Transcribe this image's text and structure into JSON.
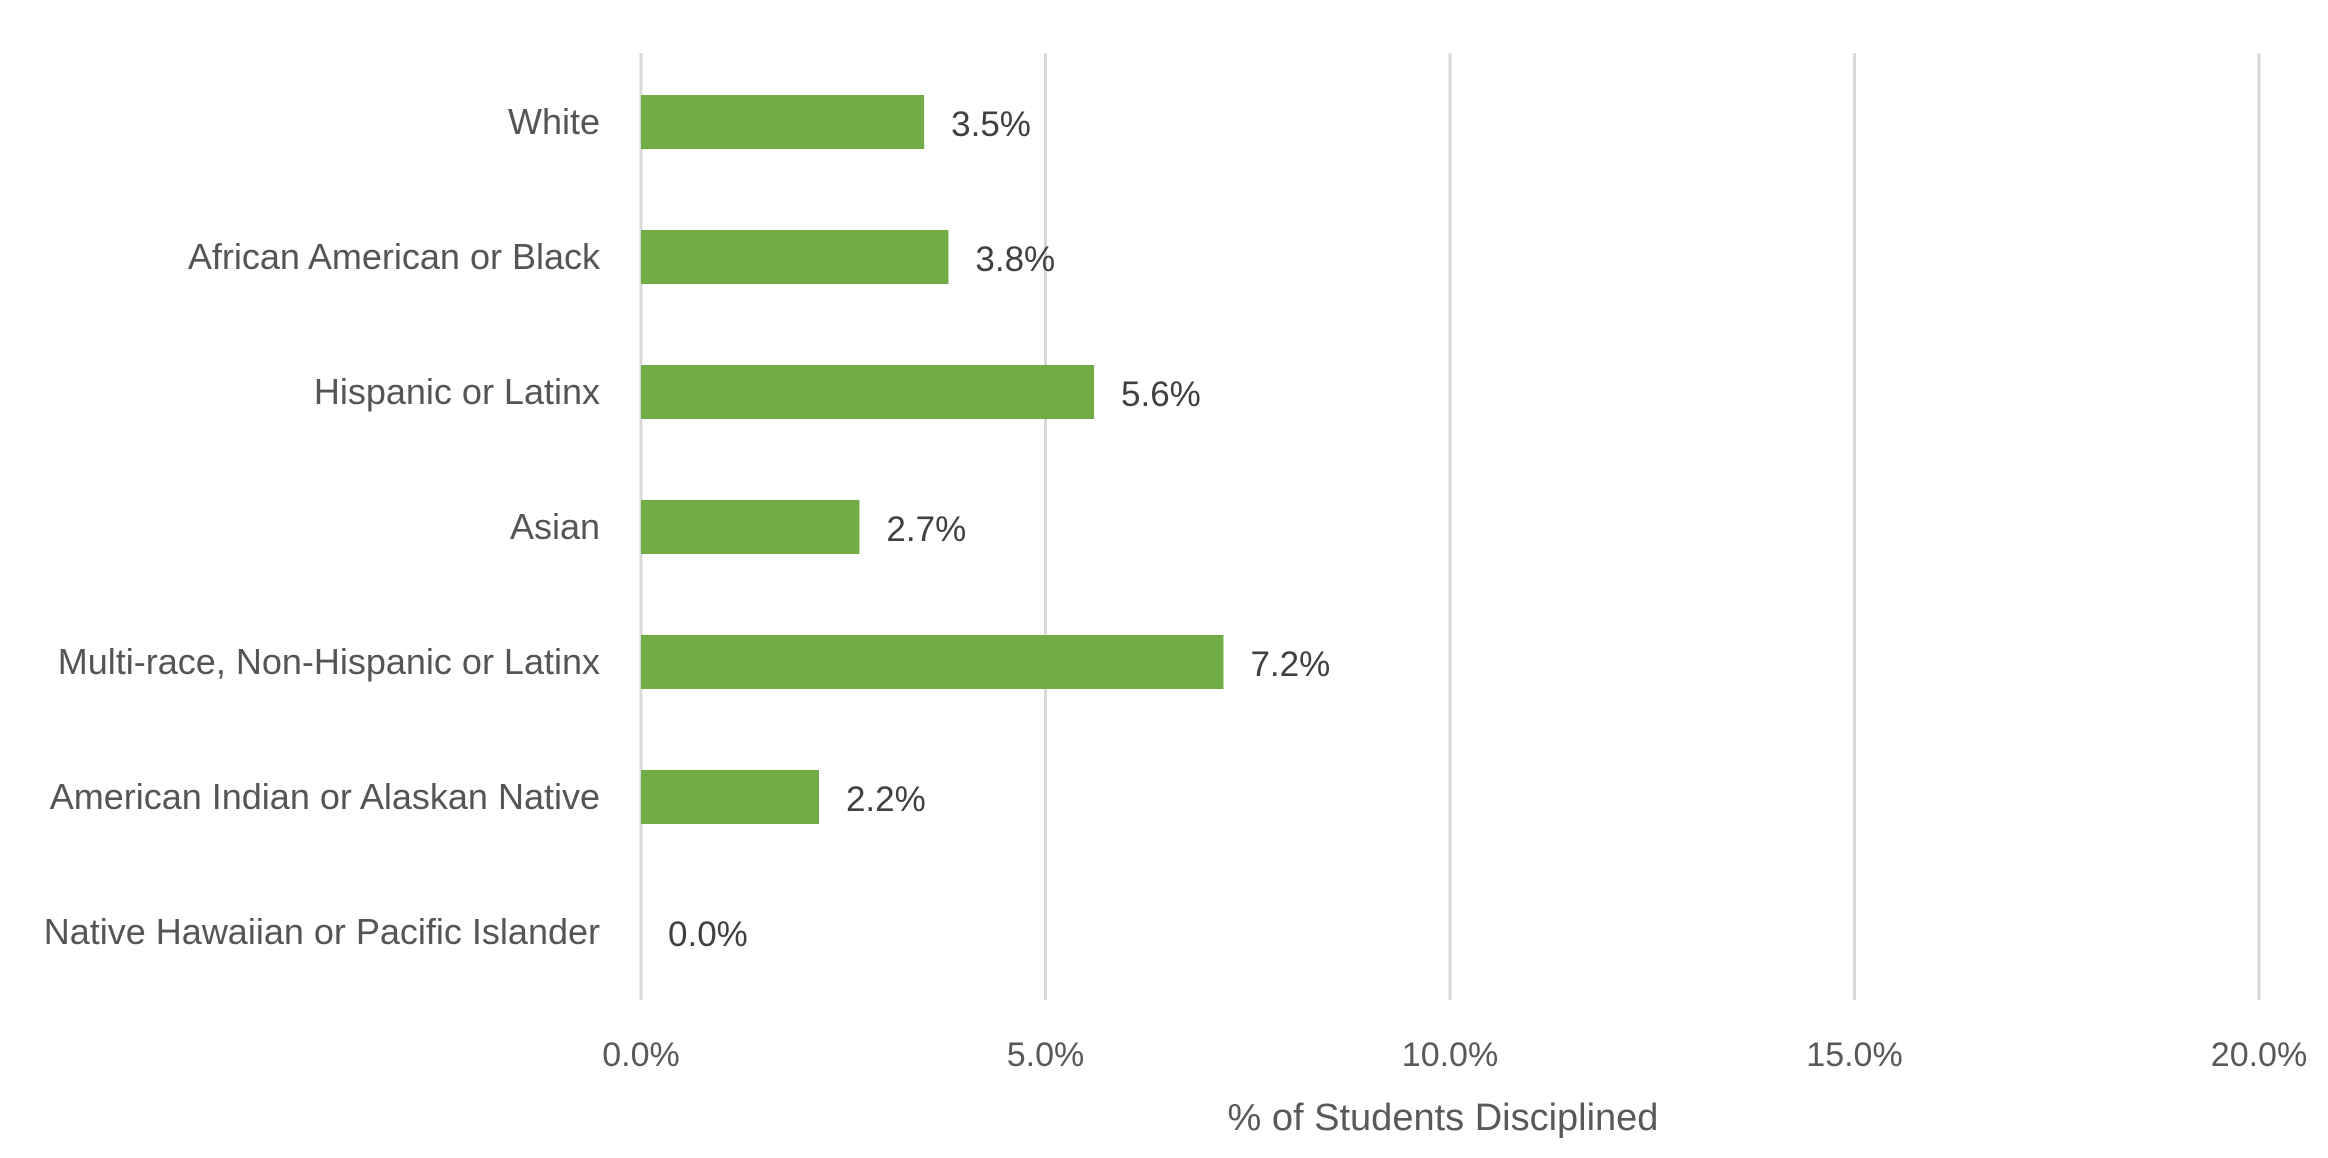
{
  "chart_data": {
    "type": "bar",
    "orientation": "horizontal",
    "categories": [
      "White",
      "African American or Black",
      "Hispanic or Latinx",
      "Asian",
      "Multi-race, Non-Hispanic or Latinx",
      "American Indian or Alaskan Native",
      "Native Hawaiian or Pacific Islander"
    ],
    "values": [
      3.5,
      3.8,
      5.6,
      2.7,
      7.2,
      2.2,
      0.0
    ],
    "data_labels": [
      "3.5%",
      "3.8%",
      "5.6%",
      "2.7%",
      "7.2%",
      "2.2%",
      "0.0%"
    ],
    "xlabel": "% of Students  Disciplined",
    "ylabel": "",
    "title": "",
    "xlim": [
      0,
      20
    ],
    "x_ticks": [
      0,
      5,
      10,
      15,
      20
    ],
    "x_tick_labels": [
      "0.0%",
      "5.0%",
      "10.0%",
      "15.0%",
      "20.0%"
    ],
    "grid": "vertical",
    "legend": "none",
    "colors": {
      "bar": "#70AD47",
      "grid": "#D9D9D9"
    }
  }
}
